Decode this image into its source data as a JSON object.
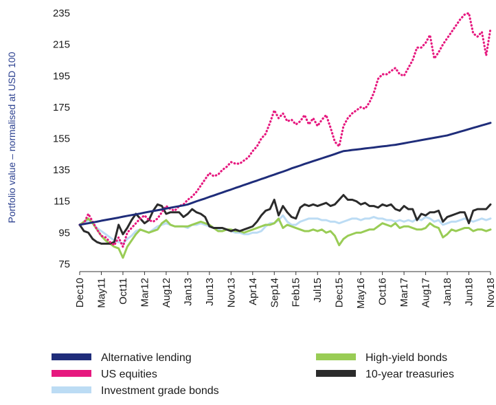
{
  "chart_data": {
    "type": "line",
    "y_label": "Portfolio value – normalised at USD 100",
    "categories": [
      "Dec10",
      null,
      null,
      null,
      null,
      "May11",
      null,
      null,
      null,
      null,
      "Oct11",
      null,
      null,
      null,
      null,
      "Mar12",
      null,
      null,
      null,
      null,
      "Aug12",
      null,
      null,
      null,
      null,
      "Jan13",
      null,
      null,
      null,
      null,
      "Jun13",
      null,
      null,
      null,
      null,
      "Nov13",
      null,
      null,
      null,
      null,
      "Apr14",
      null,
      null,
      null,
      null,
      "Sep14",
      null,
      null,
      null,
      null,
      "Feb15",
      null,
      null,
      null,
      null,
      "Jul15",
      null,
      null,
      null,
      null,
      "Dec15",
      null,
      null,
      null,
      null,
      "May16",
      null,
      null,
      null,
      null,
      "Oct16",
      null,
      null,
      null,
      null,
      "Mar17",
      null,
      null,
      null,
      null,
      "Aug17",
      null,
      null,
      null,
      null,
      "Jan18",
      null,
      null,
      null,
      null,
      "Jun18",
      null,
      null,
      null,
      null,
      "Nov18"
    ],
    "ylim": [
      70,
      240
    ],
    "yticks": [
      75,
      95,
      115,
      135,
      155,
      175,
      195,
      215,
      235
    ],
    "grid": false,
    "legend": "bottom",
    "series": [
      {
        "name": "Alternative lending",
        "color": "#1f2d7a",
        "style": "solid",
        "values": [
          100,
          100.5,
          101,
          101.5,
          102,
          102.6,
          103.1,
          103.6,
          104.1,
          104.6,
          105.2,
          105.7,
          106.2,
          106.7,
          107.2,
          107.8,
          108.3,
          108.8,
          109.3,
          109.8,
          110.4,
          110.9,
          111.4,
          111.9,
          112.4,
          113,
          114,
          115,
          115.9,
          116.8,
          117.8,
          118.7,
          119.7,
          120.6,
          121.6,
          122.5,
          123.5,
          124.4,
          125.4,
          126.3,
          127.3,
          128.2,
          129.2,
          130.1,
          131.1,
          132,
          133,
          133.9,
          134.9,
          136,
          136.9,
          137.8,
          138.8,
          139.7,
          140.6,
          141.5,
          142.4,
          143.3,
          144.2,
          145.1,
          146.1,
          147,
          147.3,
          147.7,
          148,
          148.3,
          148.7,
          149,
          149.3,
          149.7,
          150,
          150.3,
          150.7,
          151,
          151.5,
          152,
          152.5,
          153,
          153.5,
          154,
          154.5,
          155,
          155.5,
          156,
          156.5,
          157,
          157.8,
          158.6,
          159.4,
          160.2,
          161,
          161.8,
          162.6,
          163.4,
          164.2,
          165
        ]
      },
      {
        "name": "US equities",
        "color": "#e6197f",
        "style": "dotted",
        "values": [
          100,
          101,
          107,
          102,
          97,
          93,
          92,
          89,
          87,
          92,
          86,
          95,
          98,
          101,
          104,
          106,
          103,
          102,
          104,
          108,
          112,
          110,
          109,
          112,
          113,
          116,
          118,
          121,
          125,
          129,
          133,
          131,
          132,
          135,
          137,
          140,
          139,
          139,
          141,
          143,
          147,
          150,
          155,
          158,
          165,
          173,
          168,
          171,
          166,
          167,
          164,
          166,
          170,
          164,
          168,
          163,
          167,
          170,
          162,
          153,
          150,
          163,
          168,
          171,
          173,
          175,
          174,
          178,
          184,
          193,
          196,
          196,
          198,
          200,
          196,
          195,
          200,
          205,
          213,
          213,
          216,
          221,
          206,
          210,
          215,
          219,
          223,
          227,
          231,
          234,
          235,
          222,
          220,
          223,
          208,
          225
        ]
      },
      {
        "name": "Investment grade bonds",
        "color": "#bcdcf4",
        "style": "solid",
        "values": [
          100,
          101,
          103,
          101,
          98,
          96,
          94,
          92,
          90,
          89,
          88,
          91,
          93,
          96,
          97,
          96,
          95,
          97,
          99,
          100,
          101,
          100,
          99,
          99,
          99,
          98,
          100,
          100,
          101,
          100,
          99,
          98,
          97,
          96,
          97,
          96,
          95,
          95,
          94,
          94,
          95,
          95,
          96,
          99,
          101,
          101,
          103,
          106,
          102,
          100,
          100,
          102,
          103,
          104,
          104,
          104,
          103,
          103,
          102,
          102,
          101,
          102,
          103,
          104,
          104,
          103,
          104,
          104,
          105,
          104,
          104,
          103,
          103,
          102,
          103,
          102,
          103,
          102,
          104,
          103,
          105,
          104,
          102,
          103,
          100,
          101,
          102,
          102,
          103,
          104,
          103,
          102,
          103,
          104,
          103,
          104
        ]
      },
      {
        "name": "High-yield bonds",
        "color": "#99cc55",
        "style": "solid",
        "values": [
          100,
          102,
          104,
          101,
          97,
          93,
          90,
          88,
          86,
          85,
          79,
          86,
          90,
          94,
          97,
          96,
          95,
          96,
          97,
          101,
          103,
          100,
          99,
          99,
          99,
          99,
          100,
          101,
          102,
          101,
          100,
          98,
          96,
          96,
          97,
          97,
          96,
          96,
          95,
          96,
          97,
          98,
          99,
          100,
          100,
          101,
          104,
          98,
          100,
          99,
          98,
          97,
          96,
          96,
          97,
          96,
          97,
          95,
          96,
          93,
          87,
          91,
          93,
          94,
          95,
          95,
          96,
          97,
          97,
          99,
          101,
          100,
          99,
          101,
          98,
          99,
          99,
          98,
          97,
          97,
          98,
          101,
          99,
          98,
          92,
          94,
          97,
          96,
          97,
          98,
          98,
          96,
          97,
          97,
          96,
          97
        ]
      },
      {
        "name": "10-year treasuries",
        "color": "#2b2b2b",
        "style": "solid",
        "values": [
          100,
          96,
          95,
          91,
          89,
          88,
          88,
          88,
          89,
          100,
          94,
          98,
          103,
          107,
          104,
          101,
          103,
          109,
          113,
          112,
          107,
          108,
          108,
          108,
          105,
          107,
          110,
          108,
          107,
          105,
          99,
          98,
          98,
          98,
          97,
          96,
          97,
          96,
          97,
          98,
          99,
          102,
          106,
          109,
          110,
          116,
          106,
          112,
          108,
          105,
          104,
          111,
          113,
          112,
          113,
          112,
          113,
          114,
          112,
          113,
          116,
          119,
          116,
          116,
          115,
          113,
          114,
          112,
          112,
          111,
          113,
          112,
          113,
          110,
          109,
          112,
          110,
          110,
          103,
          107,
          106,
          108,
          108,
          109,
          102,
          105,
          106,
          107,
          108,
          108,
          101,
          109,
          110,
          110,
          110,
          113
        ]
      }
    ]
  }
}
